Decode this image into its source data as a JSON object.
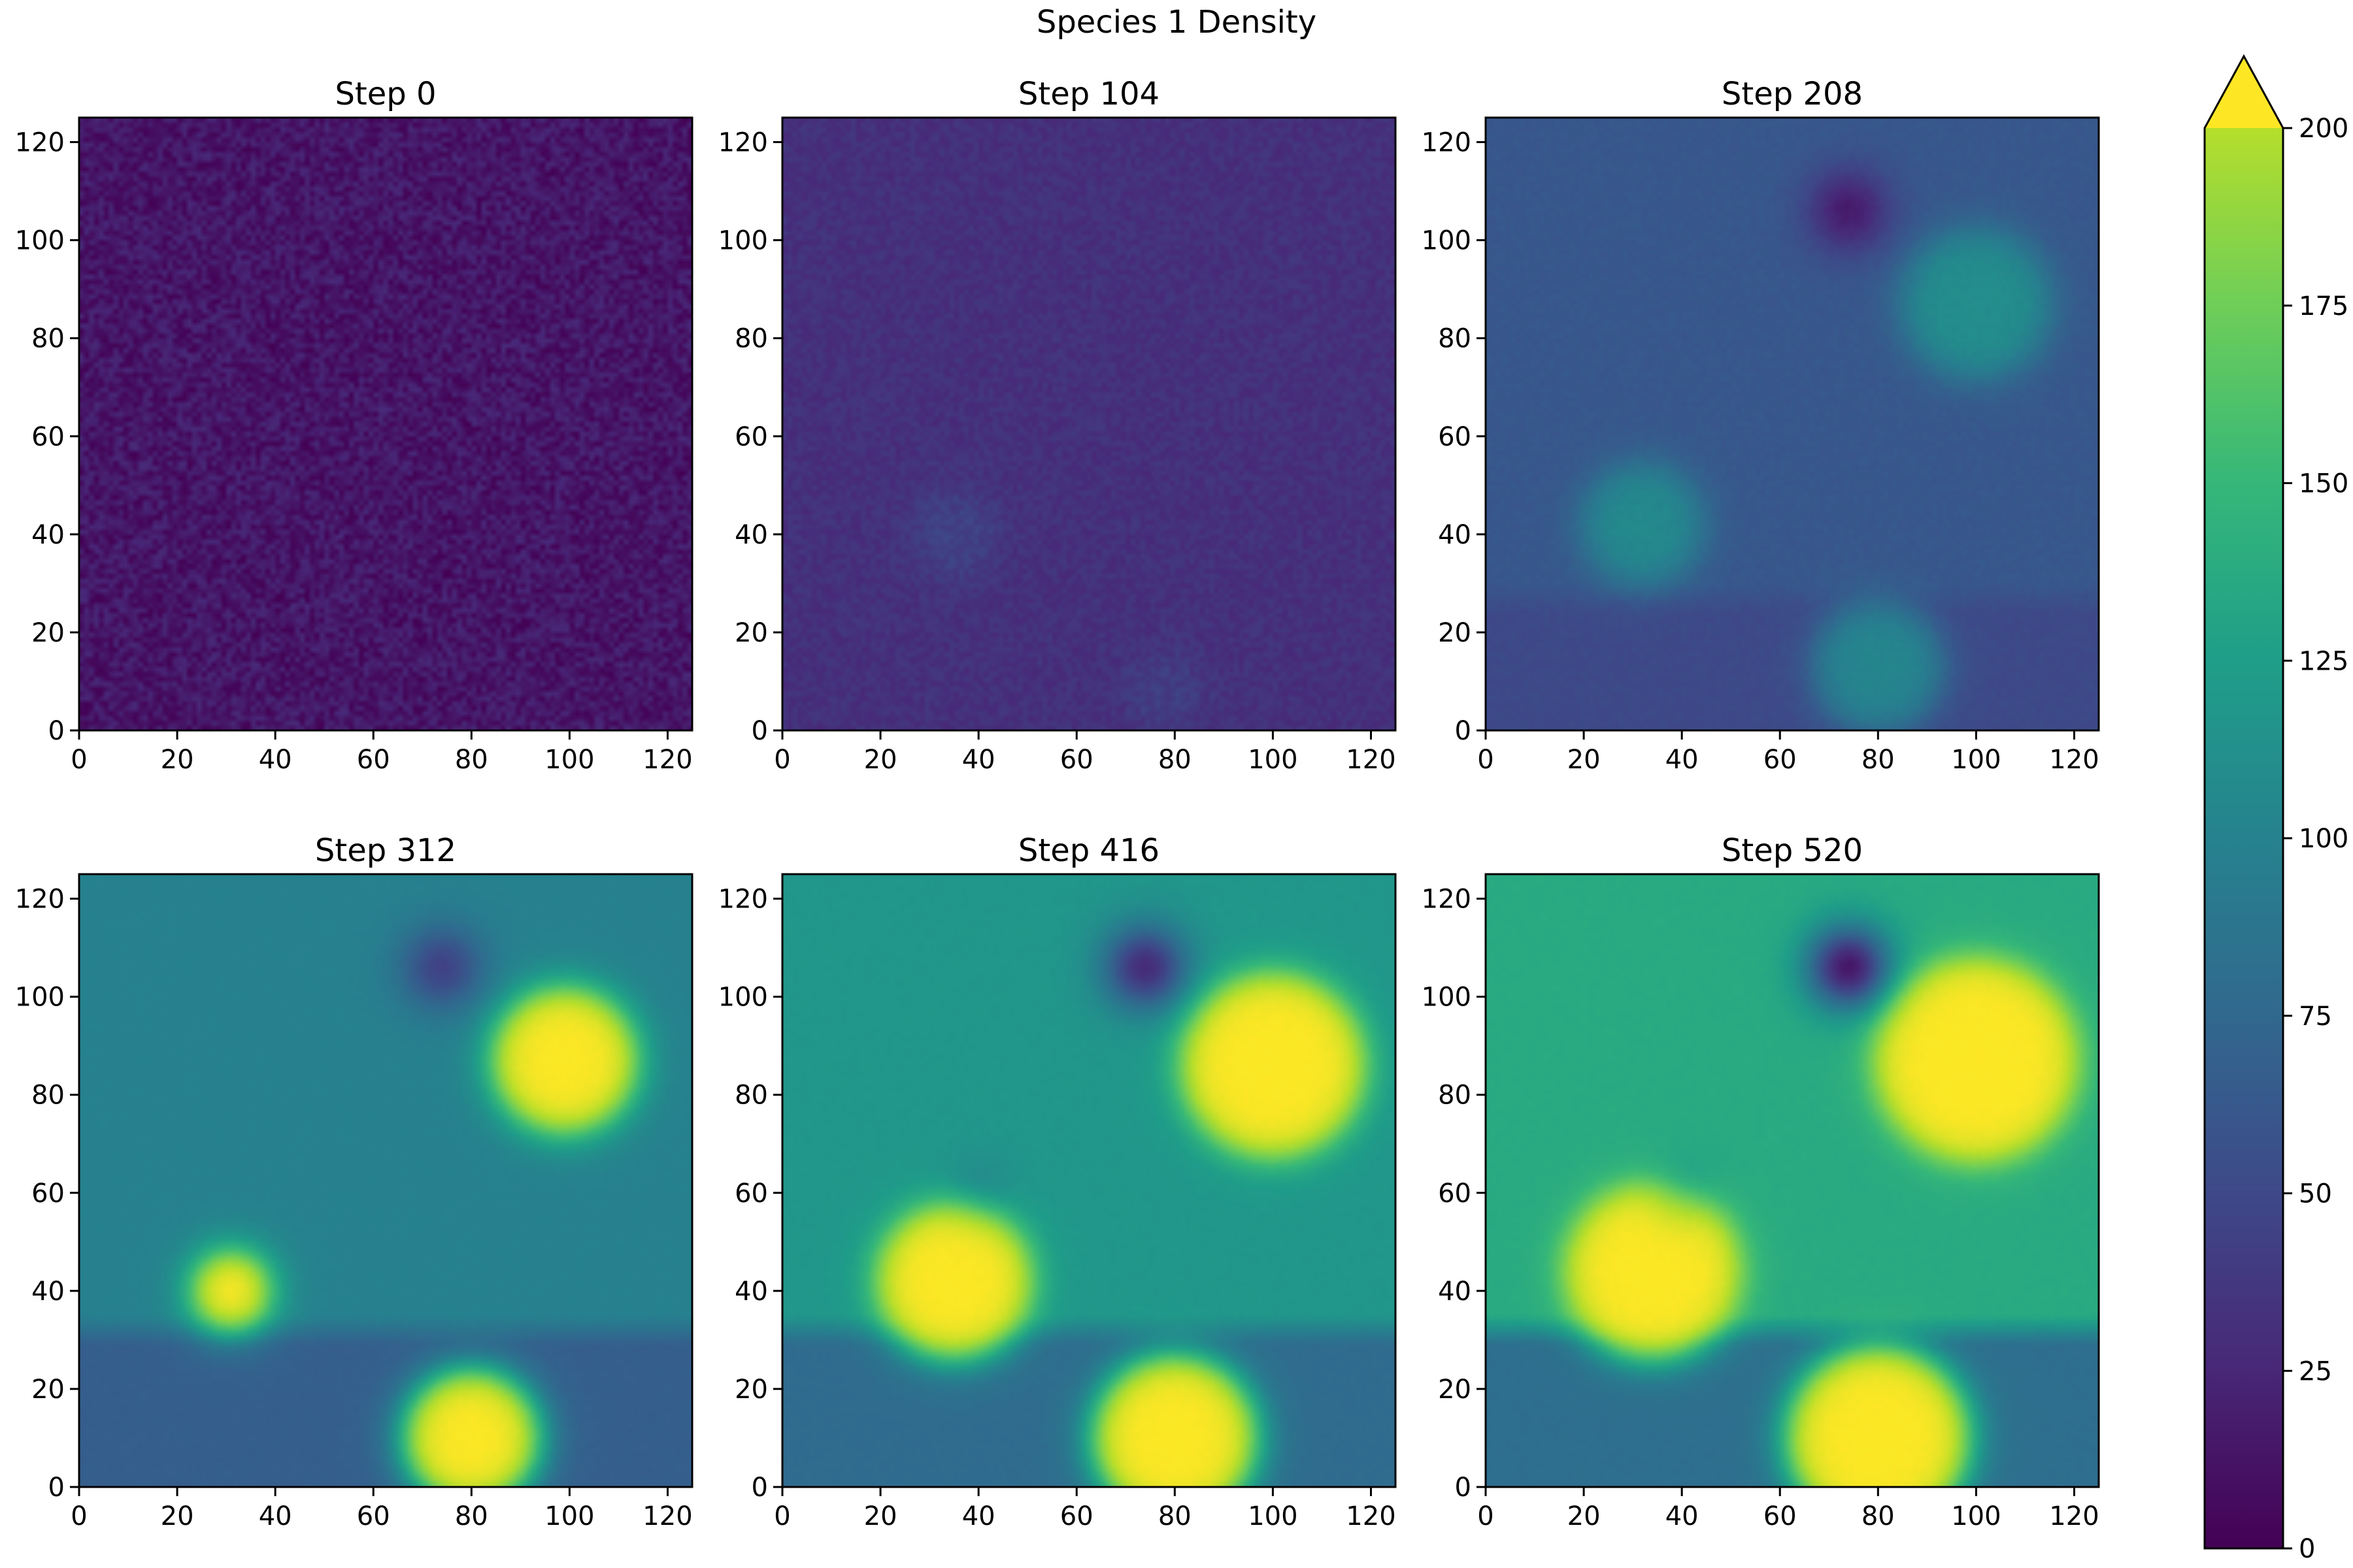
{
  "figure": {
    "title": "Species 1 Density"
  },
  "chart_data": {
    "type": "heatmap",
    "title": "Species 1 Density",
    "colormap": "viridis",
    "grid": false,
    "panels": [
      {
        "title": "Step 0",
        "background": 12,
        "noise": 12,
        "blobs": [],
        "holes": []
      },
      {
        "title": "Step 104",
        "background": 28,
        "noise": 6,
        "blobs": [
          {
            "cx": 35,
            "cy": 40,
            "r": 9,
            "peak": 40
          },
          {
            "cx": 78,
            "cy": 8,
            "r": 7,
            "peak": 38
          }
        ],
        "holes": []
      },
      {
        "title": "Step 208",
        "background": 55,
        "noise": 2,
        "blobs": [
          {
            "cx": 100,
            "cy": 87,
            "r": 15,
            "peak": 98
          },
          {
            "cx": 32,
            "cy": 42,
            "r": 12,
            "peak": 95
          },
          {
            "cx": 80,
            "cy": 13,
            "r": 13,
            "peak": 92
          }
        ],
        "holes": [
          {
            "cx": 74,
            "cy": 106,
            "r": 6,
            "depth": 40
          }
        ],
        "bands": [
          {
            "y0": 0,
            "y1": 30,
            "value": 45
          }
        ]
      },
      {
        "title": "Step 312",
        "background": 88,
        "noise": 1,
        "blobs": [
          {
            "cx": 99,
            "cy": 87,
            "r": 15,
            "peak": 200
          },
          {
            "cx": 31,
            "cy": 40,
            "r": 8,
            "peak": 200
          },
          {
            "cx": 80,
            "cy": 10,
            "r": 14,
            "peak": 200
          }
        ],
        "holes": [
          {
            "cx": 74,
            "cy": 106,
            "r": 6,
            "depth": 48
          }
        ],
        "bands": [
          {
            "y0": 0,
            "y1": 35,
            "value": 60
          }
        ]
      },
      {
        "title": "Step 416",
        "background": 105,
        "noise": 1,
        "blobs": [
          {
            "cx": 100,
            "cy": 86,
            "r": 19,
            "peak": 200
          },
          {
            "cx": 35,
            "cy": 42,
            "r": 16,
            "peak": 200
          },
          {
            "cx": 80,
            "cy": 10,
            "r": 17,
            "peak": 200
          }
        ],
        "holes": [
          {
            "cx": 74,
            "cy": 106,
            "r": 6,
            "depth": 80
          },
          {
            "cx": 40,
            "cy": 60,
            "r": 5,
            "depth": 15
          }
        ],
        "bands": [
          {
            "y0": 0,
            "y1": 35,
            "value": 70
          }
        ]
      },
      {
        "title": "Step 520",
        "background": 122,
        "noise": 1,
        "blobs": [
          {
            "cx": 100,
            "cy": 87,
            "r": 21,
            "peak": 200
          },
          {
            "cx": 34,
            "cy": 44,
            "r": 18,
            "peak": 200
          },
          {
            "cx": 80,
            "cy": 10,
            "r": 19,
            "peak": 200
          }
        ],
        "holes": [
          {
            "cx": 74,
            "cy": 106,
            "r": 6,
            "depth": 110
          },
          {
            "cx": 40,
            "cy": 60,
            "r": 5,
            "depth": 20
          }
        ],
        "bands": [
          {
            "y0": 0,
            "y1": 35,
            "value": 72
          }
        ]
      }
    ],
    "x_ticks": [
      0,
      20,
      40,
      60,
      80,
      100,
      120
    ],
    "y_ticks": [
      0,
      20,
      40,
      60,
      80,
      100,
      120
    ],
    "xlim": [
      0,
      125
    ],
    "ylim": [
      0,
      125
    ],
    "colorbar": {
      "min": 0,
      "max": 200,
      "extend": "max",
      "ticks": [
        0,
        25,
        50,
        75,
        100,
        125,
        150,
        175,
        200
      ]
    }
  }
}
